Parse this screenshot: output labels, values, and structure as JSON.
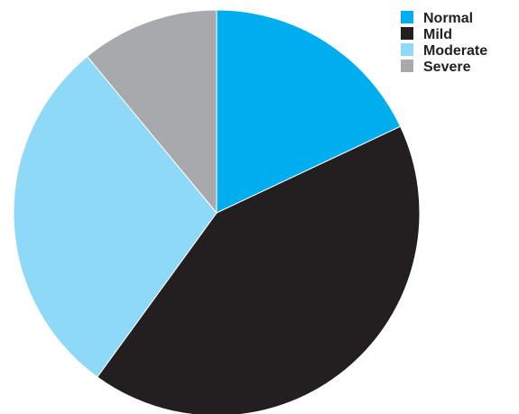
{
  "chart_data": {
    "type": "pie",
    "categories": [
      "Normal",
      "Mild",
      "Moderate",
      "Severe"
    ],
    "values": [
      18,
      42,
      29,
      11
    ],
    "colors": [
      "#00aeef",
      "#231f20",
      "#8ed8f8",
      "#a7a9ac"
    ],
    "start_angle_deg": 0,
    "direction": "clockwise",
    "title": "",
    "legend_position": "top-right"
  }
}
